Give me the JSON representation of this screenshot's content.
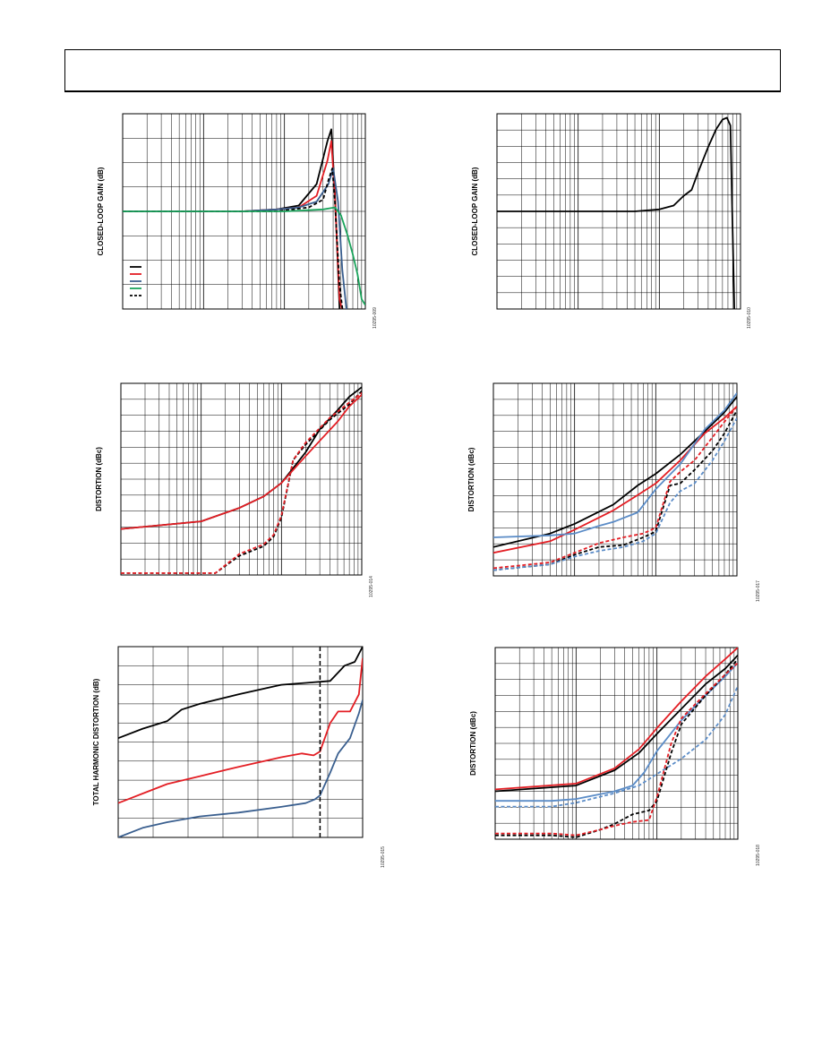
{
  "page": {
    "header_text": ""
  },
  "colors": {
    "black": "#000000",
    "red": "#e31e24",
    "blue": "#3a5f8f",
    "lightblue": "#5b8cc7",
    "green": "#1aa35b",
    "grid": "#000000"
  },
  "chart_data": [
    {
      "id": "panel-1",
      "type": "line",
      "xscale": "log",
      "ylabel": "CLOSED-LOOP GAIN (dB)",
      "fig_code": "10295-009",
      "grid": true,
      "xlim": [
        1,
        1000
      ],
      "ylim": [
        0,
        100
      ],
      "legend_swatches": [
        {
          "color": "#000000",
          "dashed": false
        },
        {
          "color": "#e31e24",
          "dashed": false
        },
        {
          "color": "#3a5f8f",
          "dashed": false
        },
        {
          "color": "#1aa35b",
          "dashed": false
        },
        {
          "color": "#000000",
          "dashed": true
        }
      ],
      "series": [
        {
          "color": "#000000",
          "dashed": false,
          "x": [
            1,
            30,
            80,
            150,
            250,
            340,
            380,
            420,
            480,
            550
          ],
          "y": [
            50,
            50,
            51,
            53,
            64,
            86,
            92,
            60,
            0,
            -5
          ]
        },
        {
          "color": "#e31e24",
          "dashed": false,
          "x": [
            1,
            30,
            80,
            150,
            250,
            340,
            380,
            420,
            480,
            550
          ],
          "y": [
            50,
            50,
            51,
            52,
            58,
            76,
            86,
            58,
            5,
            -5
          ]
        },
        {
          "color": "#3a5f8f",
          "dashed": false,
          "x": [
            1,
            30,
            80,
            150,
            250,
            350,
            400,
            460,
            520,
            600
          ],
          "y": [
            50,
            50,
            51,
            52,
            55,
            64,
            72,
            55,
            20,
            -5
          ]
        },
        {
          "color": "#000000",
          "dashed": true,
          "x": [
            1,
            80,
            200,
            300,
            350,
            390,
            420,
            480,
            540
          ],
          "y": [
            50,
            50,
            52,
            56,
            66,
            72,
            55,
            12,
            -5
          ]
        },
        {
          "color": "#1aa35b",
          "dashed": false,
          "x": [
            1,
            100,
            300,
            420,
            500,
            600,
            700,
            800,
            900,
            1000
          ],
          "y": [
            50,
            50,
            51,
            52,
            48,
            38,
            28,
            18,
            5,
            2
          ]
        }
      ]
    },
    {
      "id": "panel-2",
      "type": "line",
      "xscale": "log",
      "ylabel": "CLOSED-LOOP GAIN (dB)",
      "fig_code": "10295-010",
      "grid": true,
      "xlim": [
        1,
        1000
      ],
      "ylim": [
        0,
        100
      ],
      "series": [
        {
          "color": "#000000",
          "dashed": false,
          "x": [
            1,
            20,
            50,
            100,
            150,
            200,
            250,
            300,
            400,
            500,
            600,
            680,
            750,
            800,
            850
          ],
          "y": [
            50,
            50,
            50,
            51,
            53,
            58,
            61,
            70,
            83,
            92,
            97,
            98,
            94,
            40,
            -10
          ]
        }
      ]
    },
    {
      "id": "panel-3",
      "type": "line",
      "xscale": "log",
      "ylabel": "DISTORTION (dBc)",
      "fig_code": "10295-014",
      "grid": true,
      "xlim": [
        1,
        1000
      ],
      "ylim": [
        0,
        100
      ],
      "series": [
        {
          "color": "#000000",
          "dashed": false,
          "x": [
            1,
            10,
            30,
            60,
            100,
            200,
            300,
            500,
            700,
            1000
          ],
          "y": [
            24,
            28,
            35,
            41,
            48,
            64,
            76,
            86,
            93,
            98
          ]
        },
        {
          "color": "#e31e24",
          "dashed": false,
          "x": [
            1,
            10,
            30,
            60,
            100,
            200,
            300,
            500,
            700,
            1000
          ],
          "y": [
            24,
            28,
            35,
            41,
            48,
            62,
            70,
            80,
            88,
            94
          ]
        },
        {
          "color": "#000000",
          "dashed": true,
          "x": [
            1,
            5,
            10,
            15,
            30,
            60,
            80,
            100,
            140,
            200,
            400,
            700,
            1000
          ],
          "y": [
            1,
            1,
            1,
            1,
            10,
            15,
            20,
            30,
            60,
            68,
            81,
            89,
            96
          ]
        },
        {
          "color": "#e31e24",
          "dashed": true,
          "x": [
            1,
            5,
            10,
            15,
            30,
            60,
            80,
            100,
            140,
            200,
            400,
            700,
            1000
          ],
          "y": [
            1,
            1,
            1,
            1,
            11,
            16,
            21,
            31,
            60,
            69,
            82,
            90,
            95
          ]
        }
      ]
    },
    {
      "id": "panel-4",
      "type": "line",
      "xscale": "log",
      "ylabel": "DISTORTION (dBc)",
      "fig_code": "10295-017",
      "grid": true,
      "xlim": [
        1,
        1000
      ],
      "ylim": [
        0,
        100
      ],
      "series": [
        {
          "color": "#000000",
          "dashed": false,
          "x": [
            1,
            5,
            10,
            30,
            60,
            100,
            200,
            400,
            700,
            1000
          ],
          "y": [
            15,
            22,
            27,
            37,
            47,
            53,
            63,
            75,
            85,
            93
          ]
        },
        {
          "color": "#e31e24",
          "dashed": false,
          "x": [
            1,
            5,
            10,
            30,
            60,
            100,
            200,
            400,
            700,
            1000
          ],
          "y": [
            12,
            18,
            24,
            34,
            42,
            48,
            60,
            74,
            82,
            88
          ]
        },
        {
          "color": "#5b8cc7",
          "dashed": false,
          "x": [
            1,
            5,
            10,
            20,
            30,
            60,
            100,
            200,
            400,
            700,
            1000
          ],
          "y": [
            20,
            21,
            22,
            26,
            28,
            33,
            45,
            58,
            76,
            86,
            95
          ]
        },
        {
          "color": "#000000",
          "dashed": true,
          "x": [
            1,
            5,
            10,
            20,
            40,
            70,
            100,
            150,
            200,
            300,
            500,
            700,
            1000
          ],
          "y": [
            3,
            6,
            11,
            15,
            16,
            20,
            23,
            47,
            48,
            55,
            65,
            74,
            86
          ]
        },
        {
          "color": "#e31e24",
          "dashed": true,
          "x": [
            1,
            5,
            10,
            20,
            40,
            70,
            100,
            150,
            200,
            300,
            500,
            700,
            1000
          ],
          "y": [
            4,
            7,
            12,
            17,
            20,
            22,
            25,
            49,
            54,
            60,
            72,
            80,
            88
          ]
        },
        {
          "color": "#5b8cc7",
          "dashed": true,
          "x": [
            1,
            5,
            10,
            20,
            40,
            70,
            100,
            150,
            200,
            300,
            500,
            700,
            1000
          ],
          "y": [
            3,
            6,
            10,
            13,
            15,
            18,
            22,
            38,
            44,
            48,
            60,
            70,
            82
          ]
        }
      ]
    },
    {
      "id": "panel-5",
      "type": "line",
      "xscale": "log",
      "ylabel": "TOTAL HARMONIC DISTORTION (dB)",
      "fig_code": "10295-015",
      "grid": true,
      "xlim": [
        1,
        1000
      ],
      "ylim": [
        0,
        100
      ],
      "marker_x": 300,
      "series": [
        {
          "color": "#000000",
          "dashed": false,
          "x": [
            1,
            2,
            4,
            6,
            10,
            30,
            100,
            200,
            400,
            600,
            800,
            1000
          ],
          "y": [
            52,
            57,
            61,
            67,
            70,
            75,
            80,
            81,
            82,
            90,
            92,
            100
          ]
        },
        {
          "color": "#e31e24",
          "dashed": false,
          "x": [
            1,
            2,
            4,
            10,
            30,
            100,
            180,
            250,
            300,
            400,
            500,
            700,
            900,
            1000
          ],
          "y": [
            18,
            23,
            28,
            32,
            37,
            42,
            44,
            43,
            45,
            60,
            66,
            66,
            75,
            94
          ]
        },
        {
          "color": "#3a5f8f",
          "dashed": false,
          "x": [
            1,
            2,
            4,
            10,
            30,
            100,
            200,
            260,
            300,
            400,
            500,
            700,
            900,
            1000
          ],
          "y": [
            0,
            5,
            8,
            11,
            13,
            16,
            18,
            20,
            22,
            34,
            44,
            52,
            65,
            72
          ]
        }
      ]
    },
    {
      "id": "panel-6",
      "type": "line",
      "xscale": "log",
      "ylabel": "DISTORTION (dBc)",
      "fig_code": "10295-018",
      "grid": true,
      "xlim": [
        1,
        1000
      ],
      "ylim": [
        0,
        100
      ],
      "series": [
        {
          "color": "#000000",
          "dashed": false,
          "x": [
            1,
            10,
            30,
            60,
            100,
            200,
            400,
            700,
            1000
          ],
          "y": [
            25,
            28,
            36,
            45,
            55,
            68,
            81,
            89,
            96
          ]
        },
        {
          "color": "#e31e24",
          "dashed": false,
          "x": [
            1,
            10,
            30,
            60,
            100,
            200,
            400,
            700,
            1000
          ],
          "y": [
            26,
            29,
            37,
            47,
            58,
            72,
            85,
            94,
            100
          ]
        },
        {
          "color": "#5b8cc7",
          "dashed": false,
          "x": [
            1,
            5,
            10,
            30,
            50,
            70,
            100,
            200,
            400,
            700,
            1000
          ],
          "y": [
            20,
            20,
            21,
            25,
            28,
            35,
            46,
            62,
            75,
            85,
            92
          ]
        },
        {
          "color": "#5b8cc7",
          "dashed": true,
          "x": [
            1,
            5,
            10,
            30,
            60,
            100,
            200,
            400,
            700,
            1000
          ],
          "y": [
            17,
            17,
            19,
            24,
            28,
            34,
            42,
            52,
            65,
            80
          ]
        },
        {
          "color": "#000000",
          "dashed": true,
          "x": [
            1,
            5,
            10,
            20,
            30,
            50,
            80,
            100,
            150,
            200,
            400,
            700,
            1000
          ],
          "y": [
            2,
            2,
            1,
            5,
            8,
            13,
            15,
            20,
            45,
            60,
            75,
            86,
            94
          ]
        },
        {
          "color": "#e31e24",
          "dashed": true,
          "x": [
            1,
            5,
            10,
            20,
            30,
            50,
            80,
            100,
            150,
            200,
            400,
            700,
            1000
          ],
          "y": [
            3,
            3,
            2,
            5,
            7,
            9,
            10,
            22,
            50,
            63,
            76,
            86,
            92
          ]
        }
      ]
    }
  ]
}
